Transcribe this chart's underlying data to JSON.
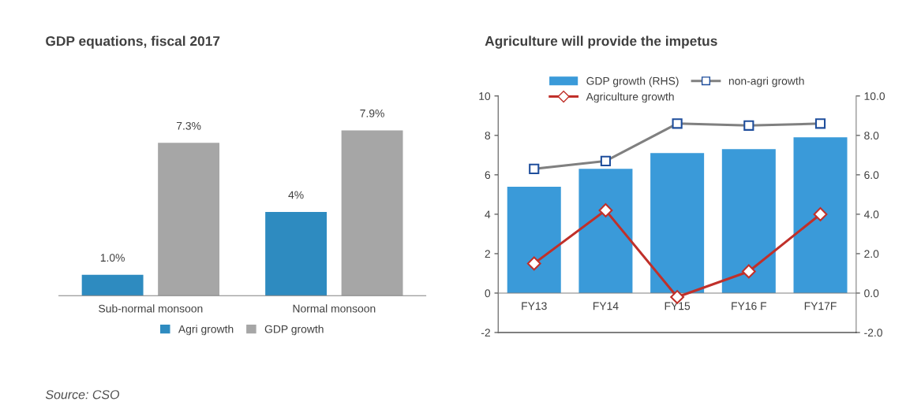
{
  "chart_data": [
    {
      "type": "bar",
      "title": "GDP equations, fiscal 2017",
      "categories": [
        "Sub-normal monsoon",
        "Normal monsoon"
      ],
      "tick_labels": "x",
      "grid": false,
      "legend": "bottom",
      "series": [
        {
          "name": "Agri growth",
          "color": "#2e8bc0",
          "values": [
            1.0,
            4
          ],
          "value_labels": [
            "1.0%",
            "4%"
          ]
        },
        {
          "name": "GDP growth",
          "color": "#a6a6a6",
          "values": [
            7.3,
            7.9
          ],
          "value_labels": [
            "7.3%",
            "7.9%"
          ]
        }
      ],
      "annotations": [
        "Source: CSO"
      ]
    },
    {
      "type": "bar",
      "title": "Agriculture will provide the impetus",
      "categories": [
        "FY13",
        "FY14",
        "FY15",
        "FY16 F",
        "FY17F"
      ],
      "grid": false,
      "legend": "top",
      "ylim": [
        -2,
        10
      ],
      "yticks": [
        -2,
        0,
        2,
        4,
        6,
        8,
        10
      ],
      "y2lim": [
        -2,
        10
      ],
      "y2ticks": [
        {
          "value": -2,
          "label": "-2.0"
        },
        {
          "value": 0,
          "label": "0.0"
        },
        {
          "value": 2,
          "label": "2.0"
        },
        {
          "value": 4,
          "label": "4.0"
        },
        {
          "value": 6,
          "label": "6.0"
        },
        {
          "value": 8,
          "label": "8.0"
        },
        {
          "value": 10,
          "label": "10.0"
        }
      ],
      "series": [
        {
          "name": "GDP growth (RHS)",
          "type": "bar",
          "axis": "y2",
          "color": "#3a9ad9",
          "values": [
            5.4,
            6.3,
            7.1,
            7.3,
            7.9
          ]
        },
        {
          "name": "Agriculture growth",
          "type": "line",
          "marker": "diamond",
          "color": "#c0302a",
          "values": [
            1.5,
            4.2,
            -0.2,
            1.1,
            4.0
          ]
        },
        {
          "name": "non-agri growth",
          "type": "line",
          "marker": "square",
          "color": "#808080",
          "values": [
            6.3,
            6.7,
            8.6,
            8.5,
            8.6
          ]
        }
      ]
    }
  ]
}
